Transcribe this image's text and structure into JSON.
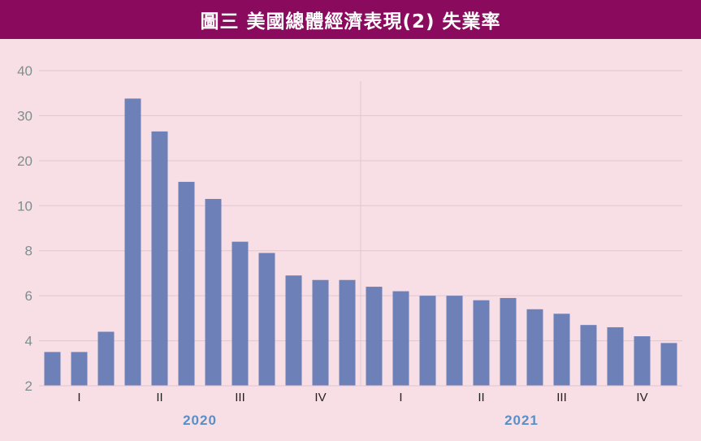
{
  "header": {
    "title": "圖三  美國總體經濟表現(2) 失業率"
  },
  "colors": {
    "header_bg": "#8a0b5e",
    "background": "#f7dfe5",
    "bar": "#6e80b8",
    "grid": "#e2c6cf",
    "year_label": "#5a8fc6",
    "y_tick": "#7f8f8f"
  },
  "chart_data": {
    "type": "bar",
    "title": "",
    "xlabel": "",
    "ylabel": "",
    "y_ticks": [
      "2",
      "4",
      "6",
      "8",
      "10",
      "20",
      "30",
      "40"
    ],
    "y_scale": "broken (uniform spacing between unevenly spaced tick values)",
    "grid": true,
    "values": [
      3.5,
      3.5,
      4.4,
      33.8,
      26.5,
      15.3,
      11.5,
      8.4,
      7.9,
      6.9,
      6.7,
      6.7,
      6.4,
      6.2,
      6.0,
      6.0,
      5.8,
      5.9,
      5.4,
      5.2,
      4.7,
      4.6,
      4.2,
      3.9
    ],
    "quarter_labels": [
      {
        "label": "I",
        "bar_index": 1
      },
      {
        "label": "II",
        "bar_index": 4
      },
      {
        "label": "III",
        "bar_index": 7
      },
      {
        "label": "IV",
        "bar_index": 10
      },
      {
        "label": "I",
        "bar_index": 13
      },
      {
        "label": "II",
        "bar_index": 16
      },
      {
        "label": "III",
        "bar_index": 19
      },
      {
        "label": "IV",
        "bar_index": 22
      }
    ],
    "years": [
      {
        "label": "2020",
        "center_index": 5.5
      },
      {
        "label": "2021",
        "center_index": 17.5
      }
    ],
    "year_divider_after_index": 11.5
  }
}
